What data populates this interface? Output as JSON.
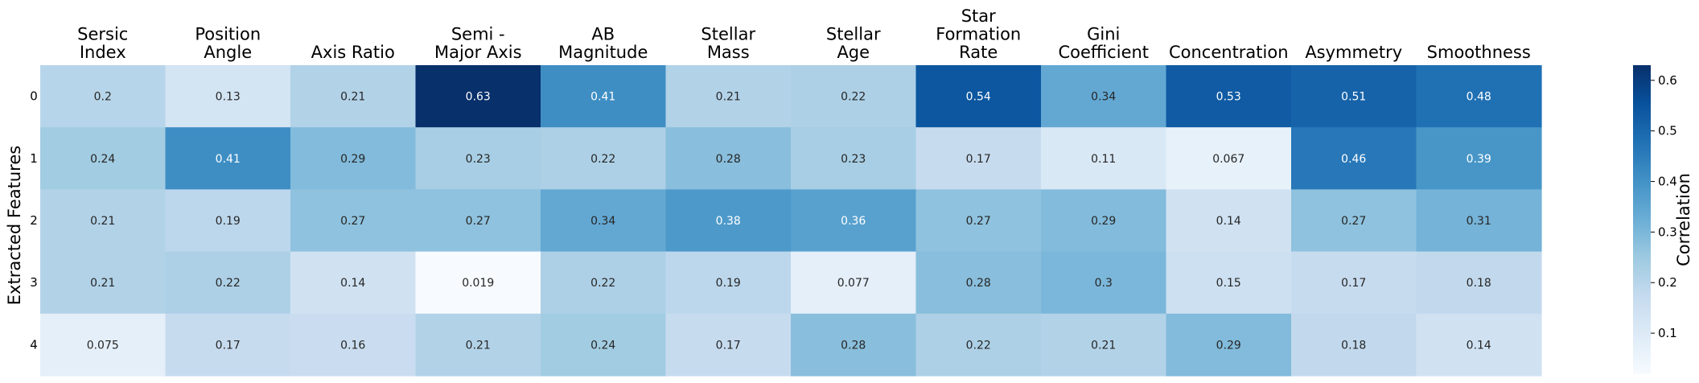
{
  "chart_data": {
    "type": "heatmap",
    "title": "",
    "xlabel": "",
    "ylabel": "Extracted Features",
    "columns": [
      [
        "Sersic",
        "Index"
      ],
      [
        "Position",
        "Angle"
      ],
      [
        "Axis Ratio"
      ],
      [
        "Semi -",
        "Major Axis"
      ],
      [
        "AB",
        "Magnitude"
      ],
      [
        "Stellar",
        "Mass"
      ],
      [
        "Stellar",
        "Age"
      ],
      [
        "Star",
        "Formation",
        "Rate"
      ],
      [
        "Gini",
        "Coefficient"
      ],
      [
        "Concentration"
      ],
      [
        "Asymmetry"
      ],
      [
        "Smoothness"
      ]
    ],
    "rows": [
      "0",
      "1",
      "2",
      "3",
      "4"
    ],
    "values": [
      [
        0.2,
        0.13,
        0.21,
        0.63,
        0.41,
        0.21,
        0.22,
        0.54,
        0.34,
        0.53,
        0.51,
        0.48
      ],
      [
        0.24,
        0.41,
        0.29,
        0.23,
        0.22,
        0.28,
        0.23,
        0.17,
        0.11,
        0.067,
        0.46,
        0.39
      ],
      [
        0.21,
        0.19,
        0.27,
        0.27,
        0.34,
        0.38,
        0.36,
        0.27,
        0.29,
        0.14,
        0.27,
        0.31
      ],
      [
        0.21,
        0.22,
        0.14,
        0.019,
        0.22,
        0.19,
        0.077,
        0.28,
        0.3,
        0.15,
        0.17,
        0.18
      ],
      [
        0.075,
        0.17,
        0.16,
        0.21,
        0.24,
        0.17,
        0.28,
        0.22,
        0.21,
        0.29,
        0.18,
        0.14
      ]
    ],
    "colormap": "Blues",
    "vmin": 0.019,
    "vmax": 0.63,
    "colorbar": {
      "label": "Correlation",
      "ticks": [
        0.1,
        0.2,
        0.3,
        0.4,
        0.5,
        0.6
      ],
      "tick_labels": [
        "0.1",
        "0.2",
        "0.3",
        "0.4",
        "0.5",
        "0.6"
      ]
    },
    "grid": false,
    "legend": "colorbar right"
  }
}
